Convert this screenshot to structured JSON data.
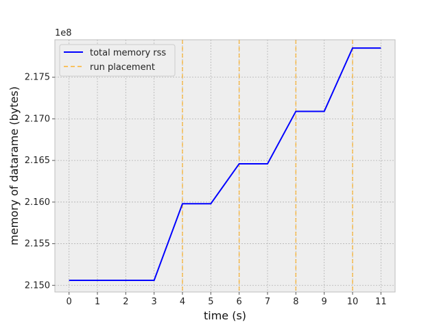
{
  "chart_data": {
    "type": "line",
    "title": "",
    "xlabel": "time (s)",
    "ylabel": "memory of datarame (bytes)",
    "y_offset_label": "1e8",
    "xlim": [
      -0.5,
      11.5
    ],
    "ylim": [
      2.1492,
      2.1795
    ],
    "x_ticks": [
      0,
      1,
      2,
      3,
      4,
      5,
      6,
      7,
      8,
      9,
      10,
      11
    ],
    "y_ticks": [
      2.15,
      2.155,
      2.16,
      2.165,
      2.17,
      2.175
    ],
    "y_tick_labels": [
      "2.150",
      "2.155",
      "2.160",
      "2.165",
      "2.170",
      "2.175"
    ],
    "grid": true,
    "legend_position": "upper-left",
    "series": [
      {
        "name": "total memory rss",
        "color": "#0000ff",
        "style": "solid",
        "x": [
          0,
          1,
          2,
          3,
          4,
          5,
          6,
          7,
          8,
          9,
          10,
          11
        ],
        "y": [
          2.1506,
          2.1506,
          2.1506,
          2.1506,
          2.1598,
          2.1598,
          2.1646,
          2.1646,
          2.1709,
          2.1709,
          2.1785,
          2.1785
        ]
      }
    ],
    "vlines": {
      "name": "run placement",
      "color": "#ffa500",
      "style": "dashed",
      "x": [
        4,
        6,
        8,
        10
      ]
    }
  }
}
